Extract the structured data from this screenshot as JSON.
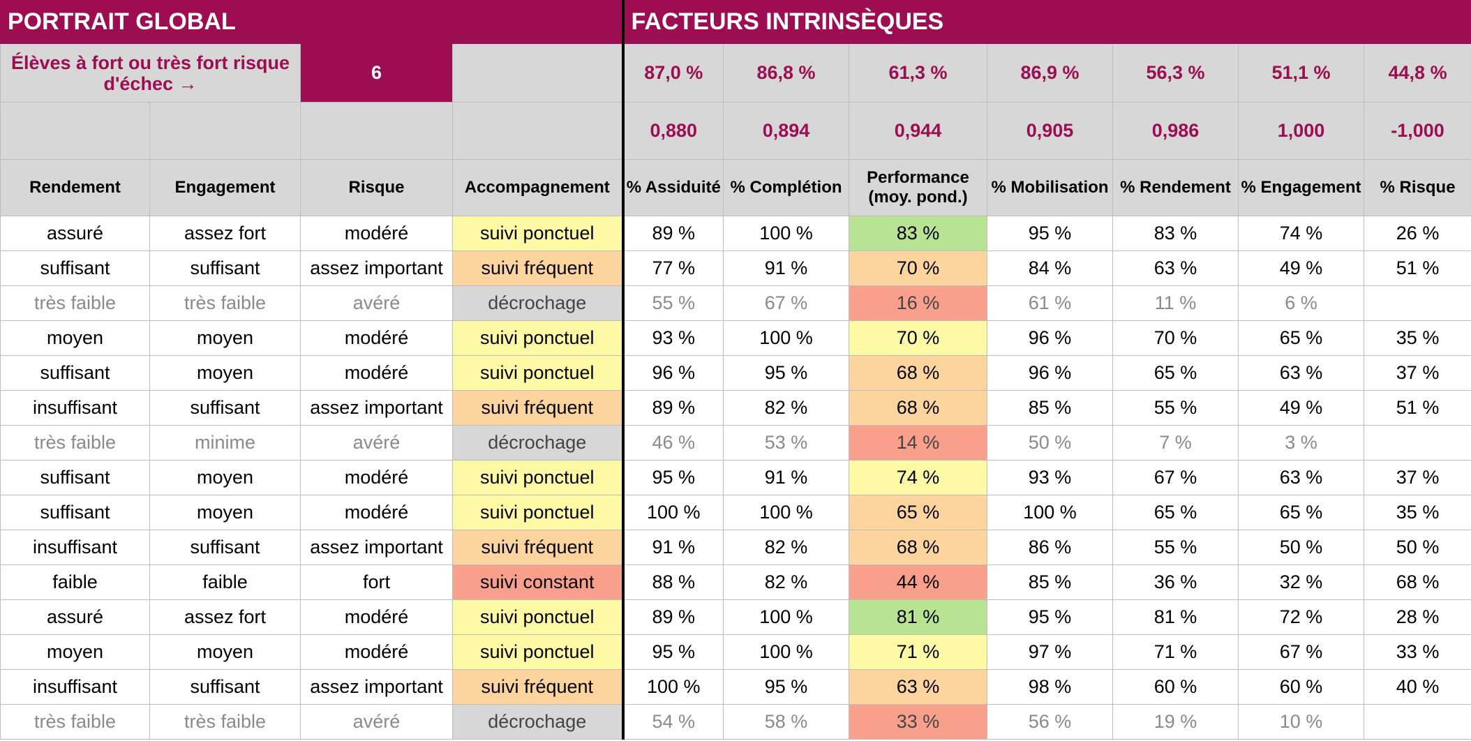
{
  "sections": {
    "left_title": "PORTRAIT GLOBAL",
    "right_title": "FACTEURS INTRINSÈQUES"
  },
  "summary": {
    "label": "Élèves à fort ou très fort risque d'échec →",
    "count": "6",
    "percentages": [
      "87,0 %",
      "86,8 %",
      "61,3 %",
      "86,9 %",
      "56,3 %",
      "51,1 %",
      "44,8 %"
    ],
    "coefficients": [
      "0,880",
      "0,894",
      "0,944",
      "0,905",
      "0,986",
      "1,000",
      "-1,000"
    ]
  },
  "columns": [
    "Rendement",
    "Engagement",
    "Risque",
    "Accompagnement",
    "% Assiduité",
    "% Complétion",
    "Performance (moy. pond.)",
    "% Mobilisation",
    "% Rendement",
    "% Engagement",
    "% Risque"
  ],
  "colors": {
    "yellow": "#fef9a5",
    "orange": "#fdd49d",
    "red": "#f9a08c",
    "grey": "#d7d7d7",
    "green": "#b7e393",
    "brand": "#9c0d51"
  },
  "rows": [
    {
      "cells": [
        "assuré",
        "assez fort",
        "modéré",
        "suivi ponctuel",
        "89 %",
        "100 %",
        "83 %",
        "95 %",
        "83 %",
        "74 %",
        "26 %"
      ],
      "acc_color": "yellow",
      "perf_color": "green",
      "dim": false
    },
    {
      "cells": [
        "suffisant",
        "suffisant",
        "assez important",
        "suivi fréquent",
        "77 %",
        "91 %",
        "70 %",
        "84 %",
        "63 %",
        "49 %",
        "51 %"
      ],
      "acc_color": "orange",
      "perf_color": "orange",
      "dim": false
    },
    {
      "cells": [
        "très faible",
        "très faible",
        "avéré",
        "décrochage",
        "55 %",
        "67 %",
        "16 %",
        "61 %",
        "11 %",
        "6 %",
        ""
      ],
      "acc_color": "grey",
      "perf_color": "red",
      "dim": true
    },
    {
      "cells": [
        "moyen",
        "moyen",
        "modéré",
        "suivi ponctuel",
        "93 %",
        "100 %",
        "70 %",
        "96 %",
        "70 %",
        "65 %",
        "35 %"
      ],
      "acc_color": "yellow",
      "perf_color": "yellow",
      "dim": false
    },
    {
      "cells": [
        "suffisant",
        "moyen",
        "modéré",
        "suivi ponctuel",
        "96 %",
        "95 %",
        "68 %",
        "96 %",
        "65 %",
        "63 %",
        "37 %"
      ],
      "acc_color": "yellow",
      "perf_color": "orange",
      "dim": false
    },
    {
      "cells": [
        "insuffisant",
        "suffisant",
        "assez important",
        "suivi fréquent",
        "89 %",
        "82 %",
        "68 %",
        "85 %",
        "55 %",
        "49 %",
        "51 %"
      ],
      "acc_color": "orange",
      "perf_color": "orange",
      "dim": false
    },
    {
      "cells": [
        "très faible",
        "minime",
        "avéré",
        "décrochage",
        "46 %",
        "53 %",
        "14 %",
        "50 %",
        "7 %",
        "3 %",
        ""
      ],
      "acc_color": "grey",
      "perf_color": "red",
      "dim": true
    },
    {
      "cells": [
        "suffisant",
        "moyen",
        "modéré",
        "suivi ponctuel",
        "95 %",
        "91 %",
        "74 %",
        "93 %",
        "67 %",
        "63 %",
        "37 %"
      ],
      "acc_color": "yellow",
      "perf_color": "yellow",
      "dim": false
    },
    {
      "cells": [
        "suffisant",
        "moyen",
        "modéré",
        "suivi ponctuel",
        "100 %",
        "100 %",
        "65 %",
        "100 %",
        "65 %",
        "65 %",
        "35 %"
      ],
      "acc_color": "yellow",
      "perf_color": "orange",
      "dim": false
    },
    {
      "cells": [
        "insuffisant",
        "suffisant",
        "assez important",
        "suivi fréquent",
        "91 %",
        "82 %",
        "68 %",
        "86 %",
        "55 %",
        "50 %",
        "50 %"
      ],
      "acc_color": "orange",
      "perf_color": "orange",
      "dim": false
    },
    {
      "cells": [
        "faible",
        "faible",
        "fort",
        "suivi constant",
        "88 %",
        "82 %",
        "44 %",
        "85 %",
        "36 %",
        "32 %",
        "68 %"
      ],
      "acc_color": "red",
      "perf_color": "red",
      "dim": false
    },
    {
      "cells": [
        "assuré",
        "assez fort",
        "modéré",
        "suivi ponctuel",
        "89 %",
        "100 %",
        "81 %",
        "95 %",
        "81 %",
        "72 %",
        "28 %"
      ],
      "acc_color": "yellow",
      "perf_color": "green",
      "dim": false
    },
    {
      "cells": [
        "moyen",
        "moyen",
        "modéré",
        "suivi ponctuel",
        "95 %",
        "100 %",
        "71 %",
        "97 %",
        "71 %",
        "67 %",
        "33 %"
      ],
      "acc_color": "yellow",
      "perf_color": "yellow",
      "dim": false
    },
    {
      "cells": [
        "insuffisant",
        "suffisant",
        "assez important",
        "suivi fréquent",
        "100 %",
        "95 %",
        "63 %",
        "98 %",
        "60 %",
        "60 %",
        "40 %"
      ],
      "acc_color": "orange",
      "perf_color": "orange",
      "dim": false
    },
    {
      "cells": [
        "très faible",
        "très faible",
        "avéré",
        "décrochage",
        "54 %",
        "58 %",
        "33 %",
        "56 %",
        "19 %",
        "10 %",
        ""
      ],
      "acc_color": "grey",
      "perf_color": "red",
      "dim": true
    }
  ]
}
